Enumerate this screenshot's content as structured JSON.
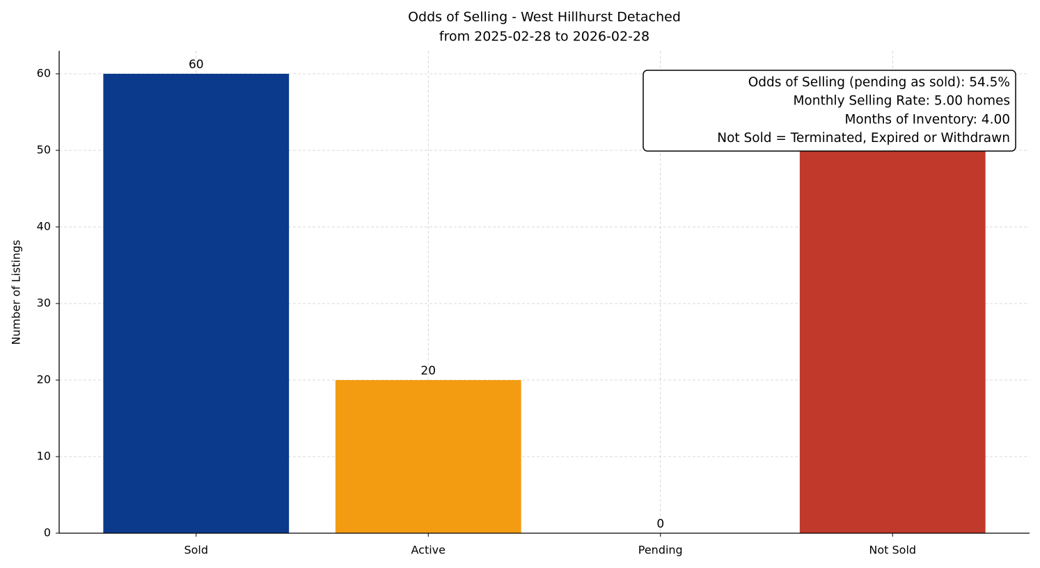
{
  "chart_data": {
    "type": "bar",
    "title": "Odds of Selling - West Hillhurst Detached",
    "subtitle": "from 2025-02-28 to 2026-02-28",
    "y_label": "Number of Listings",
    "categories": [
      "Sold",
      "Active",
      "Pending",
      "Not Sold"
    ],
    "values": [
      60,
      20,
      0,
      50
    ],
    "colors": [
      "#0b3a8c",
      "#f39c12",
      "#7f8c8d",
      "#c0392b"
    ],
    "ylim": [
      0,
      63
    ],
    "yticks": [
      0,
      10,
      20,
      30,
      40,
      50,
      60
    ],
    "grid": true,
    "annotation": [
      "Odds of Selling (pending as sold): 54.5%",
      "Monthly Selling Rate: 5.00 homes",
      "Months of Inventory: 4.00",
      "Not Sold = Terminated, Expired or Withdrawn"
    ]
  }
}
